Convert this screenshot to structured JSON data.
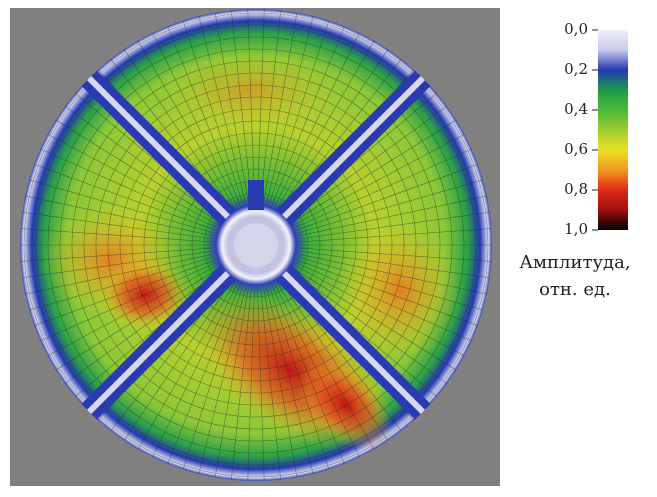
{
  "chart_data": {
    "type": "heatmap",
    "colorbar_label": [
      "Амплитуда,",
      "отн. ед."
    ],
    "clim": [
      0,
      1
    ],
    "cticks": [
      {
        "value": 0,
        "label": "0,0"
      },
      {
        "value": 0.2,
        "label": "0,2"
      },
      {
        "value": 0.4,
        "label": "0,4"
      },
      {
        "value": 0.6,
        "label": "0,6"
      },
      {
        "value": 0.8,
        "label": "0,8"
      },
      {
        "value": 1,
        "label": "1,0"
      }
    ],
    "colormap": [
      "#f2f0fa",
      "#c8c8ec",
      "#2438b0",
      "#1c9a4a",
      "#4cb838",
      "#9ccc30",
      "#ece020",
      "#f09a20",
      "#e02a18",
      "#a01010",
      "#000000"
    ]
  }
}
